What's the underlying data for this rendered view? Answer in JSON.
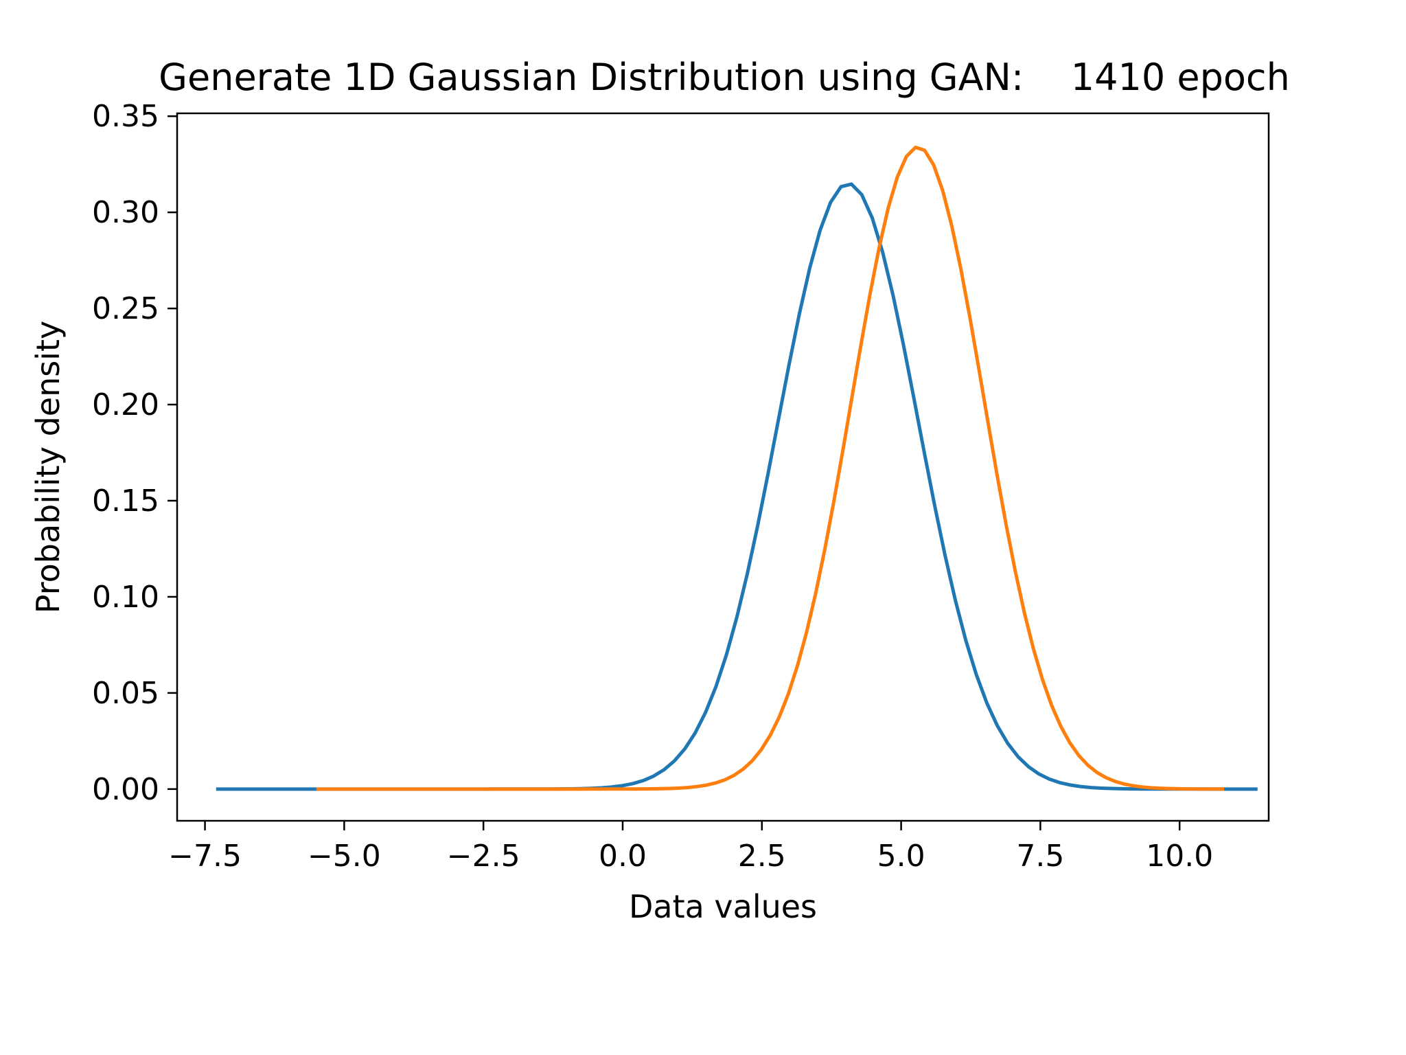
{
  "chart_data": {
    "type": "line",
    "title": "Generate 1D Gaussian Distribution using GAN:    1410 epoch",
    "xlabel": "Data values",
    "ylabel": "Probability density",
    "xlim": [
      -8.0,
      11.6
    ],
    "ylim": [
      -0.0165,
      0.3515
    ],
    "xticks": [
      -7.5,
      -5.0,
      -2.5,
      0.0,
      2.5,
      5.0,
      7.5,
      10.0
    ],
    "xtick_labels": [
      "−7.5",
      "−5.0",
      "−2.5",
      "0.0",
      "2.5",
      "5.0",
      "7.5",
      "10.0"
    ],
    "yticks": [
      0.0,
      0.05,
      0.1,
      0.15,
      0.2,
      0.25,
      0.3,
      0.35
    ],
    "ytick_labels": [
      "0.00",
      "0.05",
      "0.10",
      "0.15",
      "0.20",
      "0.25",
      "0.30",
      "0.35"
    ],
    "grid": false,
    "legend": "none",
    "series": [
      {
        "color": "#1f77b4",
        "x_range": [
          -7.3,
          11.4
        ],
        "mean": 4.05,
        "std": 1.26,
        "peak": 0.315
      },
      {
        "color": "#ff7f0e",
        "x_range": [
          -5.5,
          10.8
        ],
        "mean": 5.3,
        "std": 1.19,
        "peak": 0.334
      }
    ]
  }
}
